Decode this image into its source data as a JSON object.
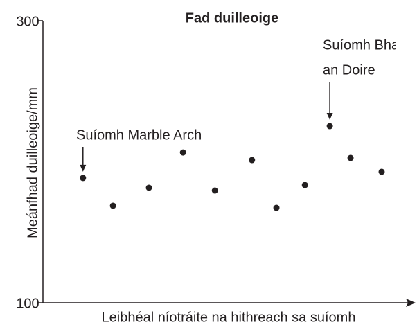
{
  "chart_data": {
    "type": "scatter",
    "title": "Fad duilleoige",
    "x_label": "Leibhéal níotráite na hithreach sa suíomh",
    "y_label": "Meánfhad duilleoige/mm",
    "x": [
      10.8,
      18.9,
      28.6,
      37.8,
      46.4,
      56.4,
      63.0,
      70.7,
      77.4,
      83.0,
      91.4
    ],
    "values": [
      188.5,
      168.8,
      181.6,
      206.6,
      179.6,
      201.2,
      167.3,
      183.5,
      225.3,
      202.7,
      192.9
    ],
    "color": "#231f20",
    "xlim": [
      0,
      100
    ],
    "ylim": [
      100,
      300
    ],
    "yticks": [
      100,
      300
    ],
    "annotations": [
      {
        "lines": [
          "Suíomh Marble Arch"
        ]
      },
      {
        "lines": [
          "Suíomh Bhaile",
          "an Doire"
        ]
      }
    ]
  }
}
